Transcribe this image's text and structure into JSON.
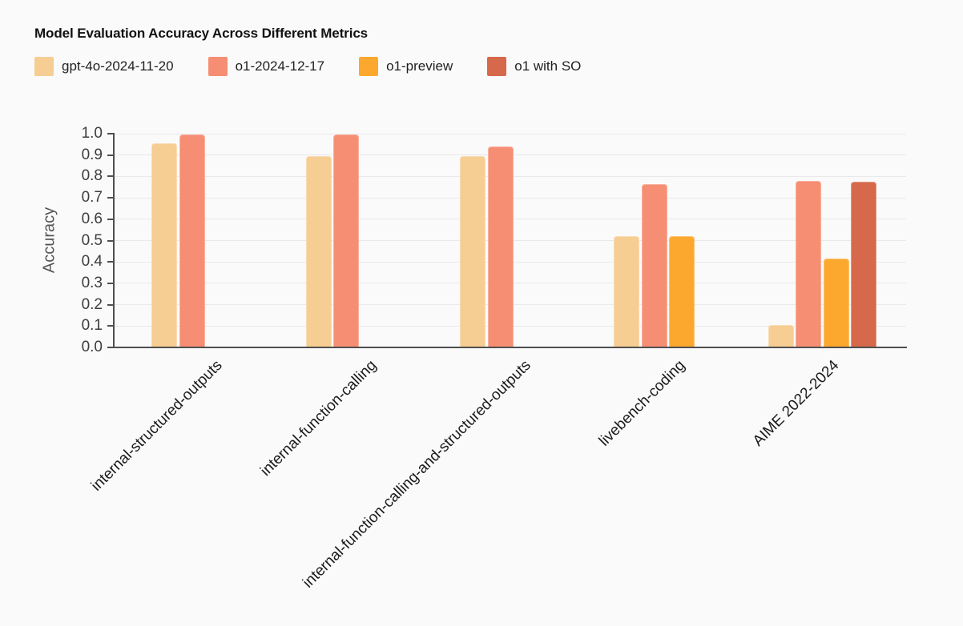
{
  "page": {
    "background_color": "#FAFAFA"
  },
  "chart_data": {
    "type": "bar",
    "title": "Model Evaluation Accuracy Across Different Metrics",
    "xlabel": "",
    "ylabel": "Accuracy",
    "ylim": [
      0.0,
      1.0
    ],
    "yticks": [
      "0.0",
      "0.1",
      "0.2",
      "0.3",
      "0.4",
      "0.5",
      "0.6",
      "0.7",
      "0.8",
      "0.9",
      "1.0"
    ],
    "grid": true,
    "legend_position": "top-left",
    "categories": [
      "internal-structured-outputs",
      "internal-function-calling",
      "internal-function-calling-and-structured-outputs",
      "livebench-coding",
      "AIME 2022-2024"
    ],
    "series": [
      {
        "name": "gpt-4o-2024-11-20",
        "color": "#F6CD92",
        "values": [
          0.955,
          0.895,
          0.895,
          0.52,
          0.105
        ]
      },
      {
        "name": "o1-2024-12-17",
        "color": "#F68E74",
        "values": [
          0.995,
          0.995,
          0.94,
          0.765,
          0.78
        ]
      },
      {
        "name": "o1-preview",
        "color": "#FCA82F",
        "values": [
          null,
          null,
          null,
          0.52,
          0.415
        ]
      },
      {
        "name": "o1 with SO",
        "color": "#D6694B",
        "values": [
          null,
          null,
          null,
          null,
          0.775
        ]
      }
    ],
    "axis_color": "#4F4F4F",
    "grid_color": "#E9E9E9",
    "tick_label_color": "#3D3D3D",
    "category_label_color": "#1B1B1B"
  }
}
